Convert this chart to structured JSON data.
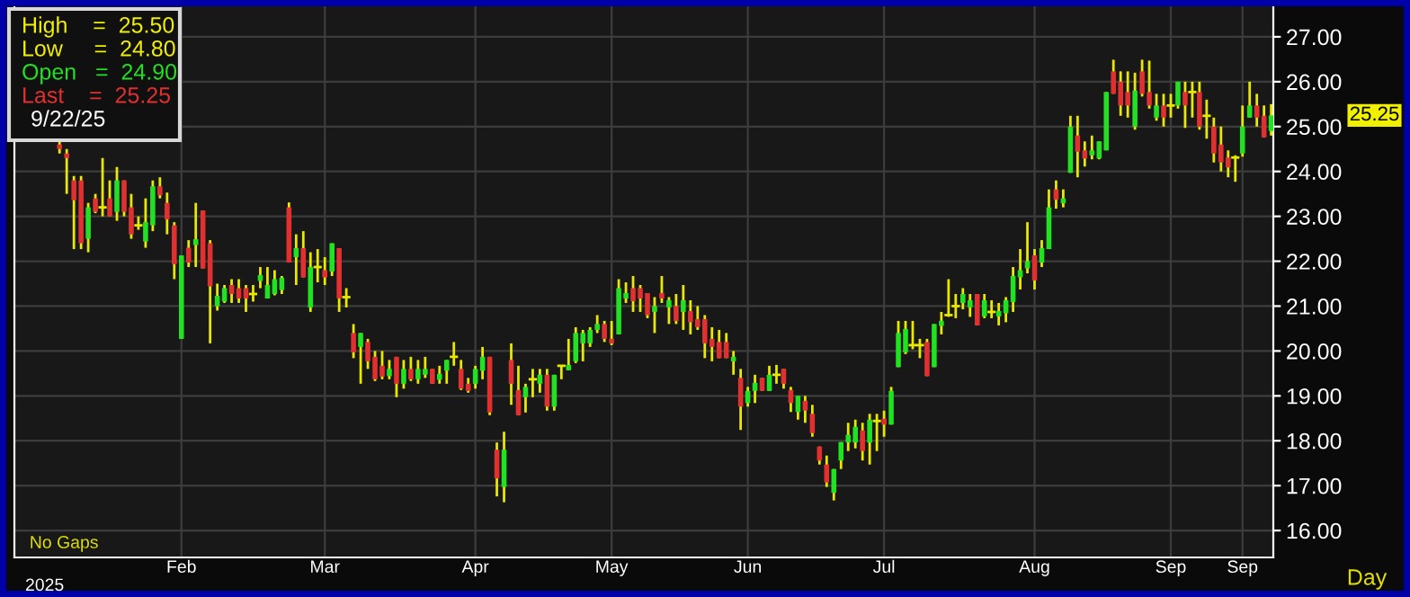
{
  "chart_data": {
    "type": "candlestick",
    "categories": [
      null,
      null,
      null,
      null,
      null,
      null,
      null,
      null,
      null,
      null,
      null,
      null,
      null,
      null,
      null,
      null,
      null,
      "Feb",
      null,
      null,
      null,
      null,
      null,
      null,
      null,
      null,
      null,
      null,
      null,
      null,
      null,
      null,
      null,
      null,
      null,
      null,
      null,
      "Mar",
      null,
      null,
      null,
      null,
      null,
      null,
      null,
      null,
      null,
      null,
      null,
      null,
      null,
      null,
      null,
      null,
      null,
      null,
      null,
      null,
      "Apr",
      null,
      null,
      null,
      null,
      null,
      null,
      null,
      null,
      null,
      null,
      null,
      null,
      null,
      null,
      null,
      null,
      null,
      null,
      "May",
      null,
      null,
      null,
      null,
      null,
      null,
      null,
      null,
      null,
      null,
      null,
      null,
      null,
      null,
      null,
      null,
      null,
      null,
      "Jun",
      null,
      null,
      null,
      null,
      null,
      null,
      null,
      null,
      null,
      null,
      null,
      null,
      null,
      null,
      null,
      null,
      null,
      null,
      "Jul",
      null,
      null,
      null,
      null,
      null,
      null,
      null,
      null,
      null,
      null,
      null,
      null,
      null,
      null,
      null,
      null,
      null,
      null,
      null,
      null,
      "Aug",
      null,
      null,
      null,
      null,
      null,
      null,
      null,
      null,
      null,
      null,
      null,
      null,
      null,
      null,
      null,
      null,
      null,
      null,
      "Sep",
      null,
      null,
      null,
      null,
      null,
      null,
      null,
      null,
      null,
      "Sep",
      null,
      null,
      null,
      null
    ],
    "ohlc": [
      [
        24.6,
        24.7,
        24.4,
        24.5
      ],
      [
        24.4,
        24.5,
        23.5,
        24.3
      ],
      [
        23.8,
        23.9,
        22.27,
        23.36
      ],
      [
        23.8,
        23.9,
        22.27,
        22.4
      ],
      [
        22.5,
        23.3,
        22.2,
        23.2
      ],
      [
        23.4,
        23.5,
        23.07,
        23.1
      ],
      [
        23.2,
        24.3,
        23.0,
        23.2
      ],
      [
        23.4,
        23.8,
        23.0,
        23.0
      ],
      [
        23.1,
        24.1,
        22.9,
        23.8
      ],
      [
        23.8,
        23.8,
        23.0,
        23.1
      ],
      [
        23.2,
        23.5,
        22.5,
        22.6
      ],
      [
        22.8,
        23.0,
        22.7,
        22.8
      ],
      [
        22.44,
        23.4,
        22.3,
        22.87
      ],
      [
        22.8,
        23.8,
        22.67,
        23.67
      ],
      [
        23.67,
        23.87,
        23.4,
        23.47
      ],
      [
        23.3,
        23.53,
        22.6,
        22.93
      ],
      [
        22.8,
        22.87,
        21.6,
        21.93
      ],
      [
        20.27,
        22.13,
        20.27,
        22.13
      ],
      [
        22.3,
        22.47,
        21.87,
        21.97
      ],
      [
        22.36,
        23.3,
        21.87,
        22.49
      ],
      [
        23.13,
        23.13,
        21.84,
        21.84
      ],
      [
        22.4,
        22.47,
        20.17,
        21.44
      ],
      [
        21.0,
        21.5,
        20.9,
        21.23
      ],
      [
        21.1,
        21.47,
        21.07,
        21.4
      ],
      [
        21.47,
        21.6,
        21.07,
        21.27
      ],
      [
        21.4,
        21.6,
        21.07,
        21.17
      ],
      [
        21.4,
        21.47,
        20.87,
        21.17
      ],
      [
        21.27,
        21.47,
        21.1,
        21.27
      ],
      [
        21.56,
        21.87,
        21.4,
        21.69
      ],
      [
        21.17,
        21.87,
        21.17,
        21.47
      ],
      [
        21.27,
        21.8,
        21.24,
        21.6
      ],
      [
        21.36,
        21.67,
        21.27,
        21.63
      ],
      [
        23.2,
        23.31,
        21.97,
        21.97
      ],
      [
        22.09,
        22.6,
        21.47,
        22.29
      ],
      [
        22.29,
        22.67,
        21.64,
        21.64
      ],
      [
        20.97,
        22.2,
        20.87,
        21.87
      ],
      [
        21.87,
        22.27,
        21.53,
        21.87
      ],
      [
        21.8,
        22.09,
        21.47,
        21.64
      ],
      [
        21.77,
        22.4,
        21.67,
        22.4
      ],
      [
        22.29,
        22.29,
        20.87,
        21.17
      ],
      [
        21.2,
        21.4,
        20.97,
        21.2
      ],
      [
        20.4,
        20.6,
        19.84,
        19.97
      ],
      [
        20.09,
        20.4,
        19.27,
        20.4
      ],
      [
        20.2,
        20.27,
        19.6,
        19.77
      ],
      [
        19.87,
        20.0,
        19.33,
        19.37
      ],
      [
        19.67,
        20.0,
        19.37,
        19.43
      ],
      [
        19.44,
        19.8,
        19.37,
        19.6
      ],
      [
        19.87,
        19.87,
        18.97,
        19.27
      ],
      [
        19.27,
        19.8,
        19.16,
        19.6
      ],
      [
        19.6,
        19.87,
        19.33,
        19.37
      ],
      [
        19.37,
        19.8,
        19.27,
        19.6
      ],
      [
        19.47,
        19.87,
        19.4,
        19.6
      ],
      [
        19.6,
        19.6,
        19.27,
        19.27
      ],
      [
        19.36,
        19.67,
        19.27,
        19.49
      ],
      [
        19.56,
        19.8,
        19.27,
        19.8
      ],
      [
        19.87,
        20.2,
        19.67,
        19.87
      ],
      [
        19.6,
        19.8,
        19.13,
        19.16
      ],
      [
        19.27,
        19.4,
        19.07,
        19.11
      ],
      [
        19.27,
        19.67,
        19.16,
        19.6
      ],
      [
        19.56,
        20.09,
        19.37,
        19.87
      ],
      [
        19.87,
        19.87,
        18.57,
        18.63
      ],
      [
        17.8,
        17.96,
        16.76,
        17.16
      ],
      [
        16.97,
        18.2,
        16.63,
        17.8
      ],
      [
        19.8,
        20.17,
        18.8,
        19.27
      ],
      [
        19.13,
        19.67,
        18.57,
        18.57
      ],
      [
        18.97,
        19.27,
        18.63,
        19.2
      ],
      [
        19.37,
        19.6,
        18.97,
        19.37
      ],
      [
        19.27,
        19.6,
        19.07,
        19.47
      ],
      [
        19.47,
        19.6,
        18.67,
        18.76
      ],
      [
        18.76,
        19.47,
        18.67,
        19.47
      ],
      [
        19.67,
        19.67,
        19.37,
        19.67
      ],
      [
        19.57,
        20.27,
        19.57,
        19.69
      ],
      [
        19.77,
        20.53,
        19.73,
        20.4
      ],
      [
        20.17,
        20.47,
        19.77,
        20.4
      ],
      [
        20.17,
        20.53,
        20.09,
        20.47
      ],
      [
        20.47,
        20.8,
        20.4,
        20.6
      ],
      [
        20.6,
        20.67,
        20.2,
        20.27
      ],
      [
        20.27,
        20.67,
        20.13,
        20.17
      ],
      [
        20.37,
        21.6,
        20.37,
        21.4
      ],
      [
        21.17,
        21.53,
        21.07,
        21.29
      ],
      [
        21.4,
        21.67,
        20.87,
        21.11
      ],
      [
        21.4,
        21.47,
        20.87,
        21.17
      ],
      [
        21.29,
        21.29,
        20.73,
        20.8
      ],
      [
        20.87,
        21.2,
        20.4,
        21.0
      ],
      [
        21.29,
        21.67,
        21.07,
        21.17
      ],
      [
        20.97,
        21.2,
        20.6,
        21.13
      ],
      [
        21.0,
        21.27,
        20.6,
        20.67
      ],
      [
        20.87,
        21.47,
        20.47,
        21.13
      ],
      [
        20.89,
        21.13,
        20.37,
        20.64
      ],
      [
        20.71,
        21.0,
        20.47,
        20.53
      ],
      [
        20.71,
        20.8,
        19.84,
        20.17
      ],
      [
        20.27,
        20.53,
        19.77,
        20.09
      ],
      [
        20.2,
        20.47,
        19.84,
        19.84
      ],
      [
        20.2,
        20.4,
        19.84,
        19.84
      ],
      [
        19.77,
        20.0,
        19.47,
        19.87
      ],
      [
        19.4,
        19.6,
        18.24,
        18.76
      ],
      [
        18.84,
        19.2,
        18.76,
        19.11
      ],
      [
        19.11,
        19.47,
        18.84,
        19.29
      ],
      [
        19.4,
        19.4,
        19.11,
        19.11
      ],
      [
        19.11,
        19.67,
        19.11,
        19.47
      ],
      [
        19.47,
        19.69,
        19.27,
        19.47
      ],
      [
        19.6,
        19.6,
        19.16,
        19.27
      ],
      [
        19.13,
        19.2,
        18.64,
        18.84
      ],
      [
        18.64,
        19.0,
        18.47,
        19.0
      ],
      [
        18.89,
        19.0,
        18.4,
        18.67
      ],
      [
        18.6,
        18.8,
        18.09,
        18.17
      ],
      [
        17.87,
        17.87,
        17.47,
        17.56
      ],
      [
        17.47,
        17.67,
        16.97,
        17.07
      ],
      [
        16.84,
        17.37,
        16.67,
        17.37
      ],
      [
        17.56,
        17.97,
        17.37,
        17.97
      ],
      [
        17.96,
        18.4,
        17.77,
        18.13
      ],
      [
        17.96,
        18.47,
        17.83,
        18.31
      ],
      [
        18.23,
        18.4,
        17.56,
        17.77
      ],
      [
        17.96,
        18.6,
        17.47,
        18.47
      ],
      [
        18.44,
        18.6,
        17.77,
        18.44
      ],
      [
        18.49,
        18.67,
        18.09,
        18.36
      ],
      [
        18.36,
        19.2,
        18.36,
        19.11
      ],
      [
        19.64,
        20.67,
        19.64,
        20.4
      ],
      [
        19.97,
        20.67,
        19.93,
        20.49
      ],
      [
        20.13,
        20.67,
        20.04,
        20.13
      ],
      [
        20.13,
        20.27,
        19.84,
        20.13
      ],
      [
        20.2,
        20.27,
        19.44,
        19.44
      ],
      [
        19.64,
        20.6,
        19.64,
        20.6
      ],
      [
        20.56,
        20.87,
        20.37,
        20.67
      ],
      [
        20.8,
        21.6,
        20.76,
        20.8
      ],
      [
        21.0,
        21.27,
        20.73,
        21.0
      ],
      [
        21.07,
        21.4,
        20.93,
        21.27
      ],
      [
        20.97,
        21.27,
        20.76,
        21.13
      ],
      [
        21.27,
        21.27,
        20.57,
        20.57
      ],
      [
        20.77,
        21.27,
        20.73,
        21.13
      ],
      [
        20.87,
        21.13,
        20.73,
        20.87
      ],
      [
        20.77,
        21.07,
        20.57,
        20.89
      ],
      [
        20.84,
        21.2,
        20.64,
        21.13
      ],
      [
        21.09,
        21.87,
        20.87,
        21.67
      ],
      [
        21.64,
        22.27,
        21.37,
        21.8
      ],
      [
        21.84,
        22.87,
        21.73,
        22.0
      ],
      [
        22.13,
        22.27,
        21.37,
        21.57
      ],
      [
        21.97,
        22.47,
        21.87,
        22.29
      ],
      [
        22.27,
        23.6,
        22.27,
        23.2
      ],
      [
        23.6,
        23.8,
        23.17,
        23.37
      ],
      [
        23.29,
        23.6,
        23.2,
        23.4
      ],
      [
        23.97,
        25.24,
        23.97,
        25.0
      ],
      [
        24.8,
        25.24,
        23.87,
        24.44
      ],
      [
        24.47,
        24.67,
        24.11,
        24.29
      ],
      [
        24.36,
        24.8,
        24.27,
        24.47
      ],
      [
        24.29,
        24.67,
        24.27,
        24.67
      ],
      [
        24.47,
        25.77,
        24.47,
        25.77
      ],
      [
        26.23,
        26.49,
        25.73,
        25.73
      ],
      [
        26.0,
        26.23,
        25.24,
        25.47
      ],
      [
        25.77,
        26.23,
        25.2,
        25.47
      ],
      [
        25.0,
        26.2,
        24.93,
        25.8
      ],
      [
        26.23,
        26.49,
        25.67,
        25.73
      ],
      [
        25.77,
        26.47,
        25.4,
        25.47
      ],
      [
        25.2,
        25.73,
        25.13,
        25.47
      ],
      [
        25.47,
        25.73,
        25.0,
        25.2
      ],
      [
        25.47,
        25.73,
        25.2,
        25.47
      ],
      [
        25.47,
        26.0,
        25.4,
        26.0
      ],
      [
        25.77,
        26.0,
        24.97,
        25.47
      ],
      [
        25.77,
        26.0,
        25.2,
        25.77
      ],
      [
        25.77,
        26.0,
        24.93,
        25.0
      ],
      [
        25.24,
        25.6,
        24.73,
        25.24
      ],
      [
        25.0,
        25.2,
        24.2,
        24.4
      ],
      [
        24.6,
        25.0,
        24.0,
        24.2
      ],
      [
        24.31,
        24.47,
        23.87,
        24.09
      ],
      [
        24.31,
        24.36,
        23.77,
        24.31
      ],
      [
        24.4,
        25.47,
        24.33,
        25.0
      ],
      [
        25.2,
        26.0,
        25.2,
        25.47
      ],
      [
        25.47,
        25.73,
        25.0,
        25.2
      ],
      [
        25.24,
        25.47,
        24.76,
        24.76
      ],
      [
        24.9,
        25.5,
        24.8,
        25.25
      ]
    ],
    "ylim": [
      15.4,
      27.7
    ],
    "yticks": [
      {
        "value": 16,
        "label": "16.00"
      },
      {
        "value": 17,
        "label": "17.00"
      },
      {
        "value": 18,
        "label": "18.00"
      },
      {
        "value": 19,
        "label": "19.00"
      },
      {
        "value": 20,
        "label": "20.00"
      },
      {
        "value": 21,
        "label": "21.00"
      },
      {
        "value": 22,
        "label": "22.00"
      },
      {
        "value": 23,
        "label": "23.00"
      },
      {
        "value": 24,
        "label": "24.00"
      },
      {
        "value": 25,
        "label": "25.00"
      },
      {
        "value": 26,
        "label": "26.00"
      },
      {
        "value": 27,
        "label": "27.00"
      }
    ],
    "grid": true,
    "annotations": [
      "High    =  25.50",
      "Low     =  24.80",
      "Open   =  24.90",
      "Last    =  25.25",
      "9/22/25",
      "25.25",
      "No Gaps",
      "2025",
      "Day"
    ]
  }
}
